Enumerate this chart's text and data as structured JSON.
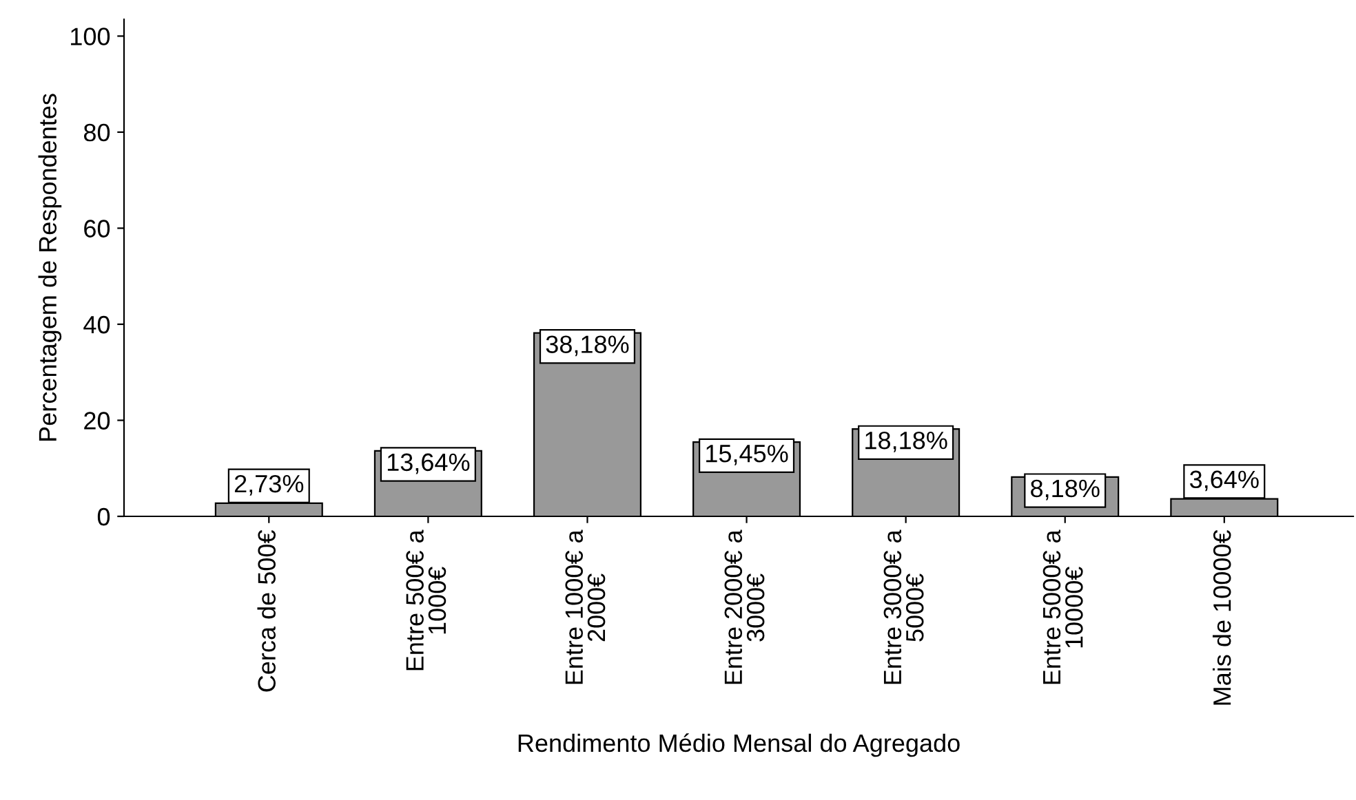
{
  "chart_data": {
    "type": "bar",
    "xlabel": "Rendimento Médio Mensal do Agregado",
    "ylabel": "Percentagem de Respondentes",
    "categories": [
      "Cerca de 500€",
      "Entre 500€ a\n1000€",
      "Entre 1000€ a\n2000€",
      "Entre 2000€ a\n3000€",
      "Entre 3000€ a\n5000€",
      "Entre 5000€ a\n10000€",
      "Mais de 10000€"
    ],
    "values": [
      2.73,
      13.64,
      38.18,
      15.45,
      18.18,
      8.18,
      3.64
    ],
    "value_labels": [
      "2,73%",
      "13,64%",
      "38,18%",
      "15,45%",
      "18,18%",
      "8,18%",
      "3,64%"
    ],
    "color": "#999999",
    "ylim": [
      0,
      103.5
    ],
    "yticks": [
      0,
      20,
      40,
      60,
      80,
      100
    ],
    "grid": false,
    "legend": false
  }
}
